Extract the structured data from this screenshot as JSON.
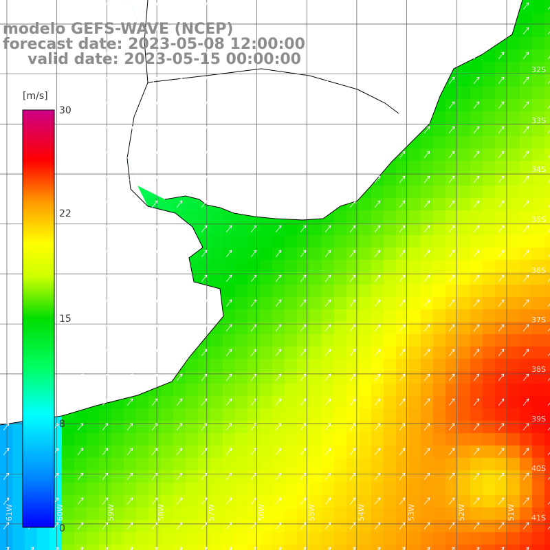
{
  "titles": {
    "line1": "modelo GEFS-WAVE (NCEP)",
    "line2": "forecast date: 2023-05-08 12:00:00",
    "line3": "valid date: 2023-05-15 00:00:00"
  },
  "colorbar": {
    "unit": "[m/s]",
    "ticks": [
      "30",
      "22",
      "15",
      "8",
      "0"
    ],
    "colors": [
      "#0000ff",
      "#00aaff",
      "#00ffff",
      "#00ff66",
      "#00dd00",
      "#aaff00",
      "#ffff00",
      "#ffaa00",
      "#ff5500",
      "#ff0000",
      "#ff0066",
      "#cc0088"
    ]
  },
  "map": {
    "land_color": "#ffffff",
    "coast_color": "#000000",
    "grid_color": "#555555",
    "arrow_color": "#ffffff",
    "lat_labels": [
      "32S",
      "33S",
      "34S",
      "35S",
      "36S",
      "37S",
      "38S",
      "39S",
      "40S",
      "41S"
    ],
    "lon_labels": [
      "61W",
      "60W",
      "59W",
      "58W",
      "57W",
      "56W",
      "55W",
      "54W",
      "53W",
      "52W",
      "51W"
    ]
  }
}
